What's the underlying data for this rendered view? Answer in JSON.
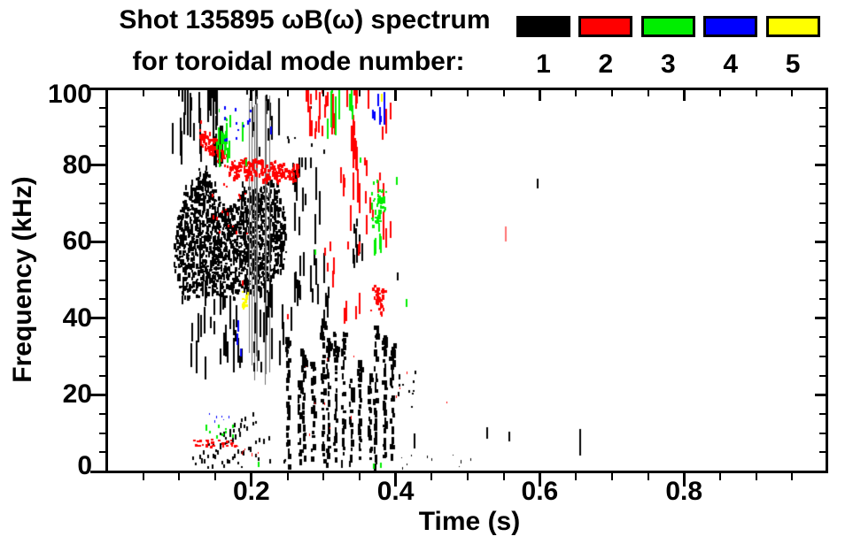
{
  "header": {
    "title_line1": "Shot 135895 ωB(ω) spectrum",
    "title_line2": "for toroidal mode number:"
  },
  "legend": {
    "modes": [
      {
        "number": "1",
        "color": "#000000"
      },
      {
        "number": "2",
        "color": "#ff0000"
      },
      {
        "number": "3",
        "color": "#00ee00"
      },
      {
        "number": "4",
        "color": "#0000ff"
      },
      {
        "number": "5",
        "color": "#ffff00"
      }
    ]
  },
  "axes": {
    "x": {
      "label": "Time (s)",
      "min": 0,
      "max": 1,
      "major_ticks": [
        0.2,
        0.4,
        0.6,
        0.8
      ],
      "major_labels": [
        "0.2",
        "0.4",
        "0.6",
        "0.8"
      ],
      "minor_step": 0.05
    },
    "y": {
      "label": "Frequency (kHz)",
      "min": 0,
      "max": 100,
      "major_ticks": [
        0,
        20,
        40,
        60,
        80,
        100
      ],
      "major_labels": [
        "0",
        "20",
        "40",
        "60",
        "80",
        "100"
      ],
      "minor_step": 5
    }
  },
  "chart_data": {
    "type": "scatter",
    "title": "Shot 135895 ωB(ω) spectrum for toroidal mode number",
    "xlabel": "Time (s)",
    "ylabel": "Frequency (kHz)",
    "xlim": [
      0,
      1
    ],
    "ylim": [
      0,
      100
    ],
    "legend_position": "top-right",
    "grid": false,
    "mode_colors": {
      "1": "#000000",
      "2": "#ff0000",
      "3": "#00ee00",
      "4": "#0000ff",
      "5": "#ffff00"
    },
    "clusters": [
      {
        "mode": 1,
        "style": "columns",
        "t": [
          0.094,
          0.247
        ],
        "cols": 120,
        "gap": 0.22,
        "top": [
          [
            0.094,
            63
          ],
          [
            0.105,
            71
          ],
          [
            0.118,
            74
          ],
          [
            0.13,
            78
          ],
          [
            0.143,
            76
          ],
          [
            0.155,
            70
          ],
          [
            0.168,
            67
          ],
          [
            0.18,
            70
          ],
          [
            0.19,
            74
          ],
          [
            0.205,
            72
          ],
          [
            0.218,
            74
          ],
          [
            0.23,
            76
          ],
          [
            0.247,
            66
          ]
        ],
        "bottom": [
          [
            0.094,
            50
          ],
          [
            0.11,
            46
          ],
          [
            0.13,
            47
          ],
          [
            0.15,
            48
          ],
          [
            0.17,
            46
          ],
          [
            0.19,
            48
          ],
          [
            0.21,
            47
          ],
          [
            0.23,
            50
          ],
          [
            0.247,
            56
          ]
        ]
      },
      {
        "mode": 1,
        "style": "vstreaks",
        "t": [
          0.09,
          0.158
        ],
        "f": [
          78,
          100
        ],
        "n": 30,
        "len": [
          3,
          13
        ]
      },
      {
        "mode": 1,
        "style": "vstreaks",
        "t": [
          0.186,
          0.238
        ],
        "f": [
          82,
          100
        ],
        "n": 14,
        "len": [
          2,
          8
        ]
      },
      {
        "mode": 1,
        "style": "vlines",
        "t": [
          0.196,
          0.238
        ],
        "f": [
          20,
          100
        ],
        "n": 9,
        "color": "#6e6e6e"
      },
      {
        "mode": 1,
        "style": "vstreaks",
        "t": [
          0.1,
          0.255
        ],
        "f": [
          24,
          48
        ],
        "n": 55,
        "len": [
          2,
          9
        ]
      },
      {
        "mode": 1,
        "style": "chirp",
        "n": 12,
        "strands": [
          [
            [
              0.118,
              4
            ],
            [
              0.2,
              16
            ]
          ],
          [
            [
              0.13,
              3
            ],
            [
              0.185,
              12
            ]
          ],
          [
            [
              0.148,
              5
            ],
            [
              0.205,
              14
            ]
          ],
          [
            [
              0.16,
              2
            ],
            [
              0.222,
              10
            ]
          ]
        ]
      },
      {
        "mode": 1,
        "style": "sparse",
        "t": [
          0.115,
          0.25
        ],
        "f": [
          1,
          6
        ],
        "n": 14
      },
      {
        "mode": 1,
        "style": "bursts",
        "t": [
          0.252,
          0.392
        ],
        "cols": 14,
        "fbase": [
          1,
          3
        ],
        "ftop": [
          22,
          38
        ]
      },
      {
        "mode": 1,
        "style": "vstreaks",
        "t": [
          0.252,
          0.308
        ],
        "f": [
          36,
          56
        ],
        "n": 18,
        "len": [
          2,
          8
        ]
      },
      {
        "mode": 1,
        "style": "vstreaks",
        "t": [
          0.255,
          0.302
        ],
        "f": [
          58,
          80
        ],
        "n": 16,
        "len": [
          3,
          9
        ]
      },
      {
        "mode": 1,
        "style": "vstreaks",
        "t": [
          0.335,
          0.355
        ],
        "f": [
          50,
          64
        ],
        "n": 8,
        "len": [
          2,
          6
        ]
      },
      {
        "mode": 1,
        "style": "sparse",
        "t": [
          0.245,
          0.3
        ],
        "f": [
          84,
          96
        ],
        "n": 6
      },
      {
        "mode": 1,
        "style": "sparse",
        "t": [
          0.398,
          0.434
        ],
        "f": [
          15,
          28
        ],
        "n": 11
      },
      {
        "mode": 1,
        "style": "sparse",
        "t": [
          0.4,
          0.515
        ],
        "f": [
          1,
          4.5
        ],
        "n": 10,
        "size": 1
      },
      {
        "mode": 1,
        "style": "marks",
        "pts": [
          [
            0.425,
            6,
            10
          ],
          [
            0.526,
            8.5,
            11.5
          ],
          [
            0.557,
            8,
            10.5
          ],
          [
            0.655,
            4,
            11
          ],
          [
            0.596,
            74,
            76.5
          ],
          [
            0.402,
            50,
            52
          ]
        ]
      },
      {
        "mode": 2,
        "style": "band",
        "thick": 5,
        "n": 240,
        "path": [
          [
            0.128,
            88
          ],
          [
            0.14,
            86
          ],
          [
            0.152,
            84
          ],
          [
            0.163,
            81
          ],
          [
            0.174,
            79
          ],
          [
            0.185,
            80.5
          ],
          [
            0.196,
            78.5
          ],
          [
            0.207,
            80
          ],
          [
            0.218,
            78
          ],
          [
            0.229,
            79.5
          ],
          [
            0.24,
            78
          ],
          [
            0.252,
            79
          ],
          [
            0.263,
            78
          ]
        ]
      },
      {
        "mode": 2,
        "style": "sparse",
        "t": [
          0.135,
          0.2
        ],
        "f": [
          62,
          76
        ],
        "n": 16
      },
      {
        "mode": 2,
        "style": "sparse",
        "t": [
          0.128,
          0.155
        ],
        "f": [
          84,
          92
        ],
        "n": 9
      },
      {
        "mode": 2,
        "style": "row",
        "t": [
          0.118,
          0.178
        ],
        "f": [
          6.5,
          8.5
        ],
        "n": 30
      },
      {
        "mode": 2,
        "style": "sparse",
        "t": [
          0.175,
          0.215
        ],
        "f": [
          4,
          8
        ],
        "n": 7,
        "size": 1
      },
      {
        "mode": 2,
        "style": "vstreaks",
        "t": [
          0.275,
          0.315
        ],
        "f": [
          86,
          103
        ],
        "n": 30,
        "len": [
          2,
          8
        ]
      },
      {
        "mode": 2,
        "style": "vstreaks",
        "t": [
          0.318,
          0.402
        ],
        "f": [
          55,
          101
        ],
        "n": 26,
        "len": [
          2,
          8
        ]
      },
      {
        "mode": 2,
        "style": "vstreaks",
        "t": [
          0.336,
          0.346
        ],
        "f": [
          70,
          101
        ],
        "n": 10,
        "len": [
          3,
          9
        ]
      },
      {
        "mode": 2,
        "style": "vstreaks",
        "t": [
          0.3,
          0.36
        ],
        "f": [
          38,
          58
        ],
        "n": 12,
        "len": [
          2,
          6
        ]
      },
      {
        "mode": 2,
        "style": "blob2",
        "t": [
          0.364,
          0.386
        ],
        "f": [
          40,
          50
        ],
        "n": 42
      },
      {
        "mode": 2,
        "style": "sparse",
        "t": [
          0.26,
          0.352
        ],
        "f": [
          8,
          32
        ],
        "n": 8,
        "size": 1
      },
      {
        "mode": 2,
        "style": "marks",
        "alpha": 0.55,
        "pts": [
          [
            0.552,
            60,
            64
          ]
        ]
      },
      {
        "mode": 2,
        "style": "sparse",
        "t": [
          0.4,
          0.47
        ],
        "f": [
          18,
          30
        ],
        "n": 4,
        "size": 1
      },
      {
        "mode": 2,
        "style": "marks",
        "pts": [
          [
            0.187,
            48.5,
            50
          ],
          [
            0.249,
            39.5,
            41
          ],
          [
            0.377,
            76,
            78
          ]
        ]
      },
      {
        "mode": 3,
        "style": "vstreaks",
        "t": [
          0.15,
          0.196
        ],
        "f": [
          79,
          91
        ],
        "n": 18,
        "len": [
          1.5,
          5
        ]
      },
      {
        "mode": 3,
        "style": "sparse",
        "t": [
          0.15,
          0.192
        ],
        "f": [
          91,
          95
        ],
        "n": 3,
        "size": 1
      },
      {
        "mode": 3,
        "style": "vstreaks",
        "t": [
          0.305,
          0.345
        ],
        "f": [
          86,
          103
        ],
        "n": 13,
        "len": [
          3,
          12
        ]
      },
      {
        "mode": 3,
        "style": "blob2",
        "t": [
          0.364,
          0.386
        ],
        "f": [
          63,
          77
        ],
        "n": 48
      },
      {
        "mode": 3,
        "style": "vstreaks",
        "t": [
          0.368,
          0.384
        ],
        "f": [
          56,
          63
        ],
        "n": 5,
        "len": [
          2,
          5
        ]
      },
      {
        "mode": 3,
        "style": "sparse",
        "t": [
          0.135,
          0.175
        ],
        "f": [
          9,
          13
        ],
        "n": 11
      },
      {
        "mode": 3,
        "style": "marks",
        "pts": [
          [
            0.209,
            1,
            2.5
          ],
          [
            0.368,
            0.5,
            2
          ],
          [
            0.378,
            1,
            2.3
          ],
          [
            0.4,
            75,
            77
          ],
          [
            0.414,
            43,
            45
          ],
          [
            0.35,
            80.5,
            82
          ],
          [
            0.287,
            56.5,
            58
          ]
        ]
      },
      {
        "mode": 4,
        "style": "sparse",
        "t": [
          0.148,
          0.2
        ],
        "f": [
          86,
          97
        ],
        "n": 12
      },
      {
        "mode": 4,
        "style": "marks",
        "pts": [
          [
            0.179,
            33,
            36
          ],
          [
            0.181,
            36.5,
            39.5
          ],
          [
            0.184,
            30,
            32
          ],
          [
            0.226,
            88,
            90
          ]
        ]
      },
      {
        "mode": 4,
        "style": "sparse",
        "t": [
          0.135,
          0.168
        ],
        "f": [
          13,
          15.5
        ],
        "n": 6,
        "size": 1
      },
      {
        "mode": 4,
        "style": "vstreaks",
        "t": [
          0.366,
          0.384
        ],
        "f": [
          88,
          97
        ],
        "n": 10,
        "len": [
          1.5,
          5
        ]
      },
      {
        "mode": 5,
        "style": "blob2",
        "t": [
          0.1835,
          0.197
        ],
        "f": [
          42,
          48.5
        ],
        "n": 16
      },
      {
        "mode": 5,
        "style": "marks",
        "pts": [
          [
            0.379,
            96.5,
            98.5
          ]
        ]
      }
    ]
  }
}
